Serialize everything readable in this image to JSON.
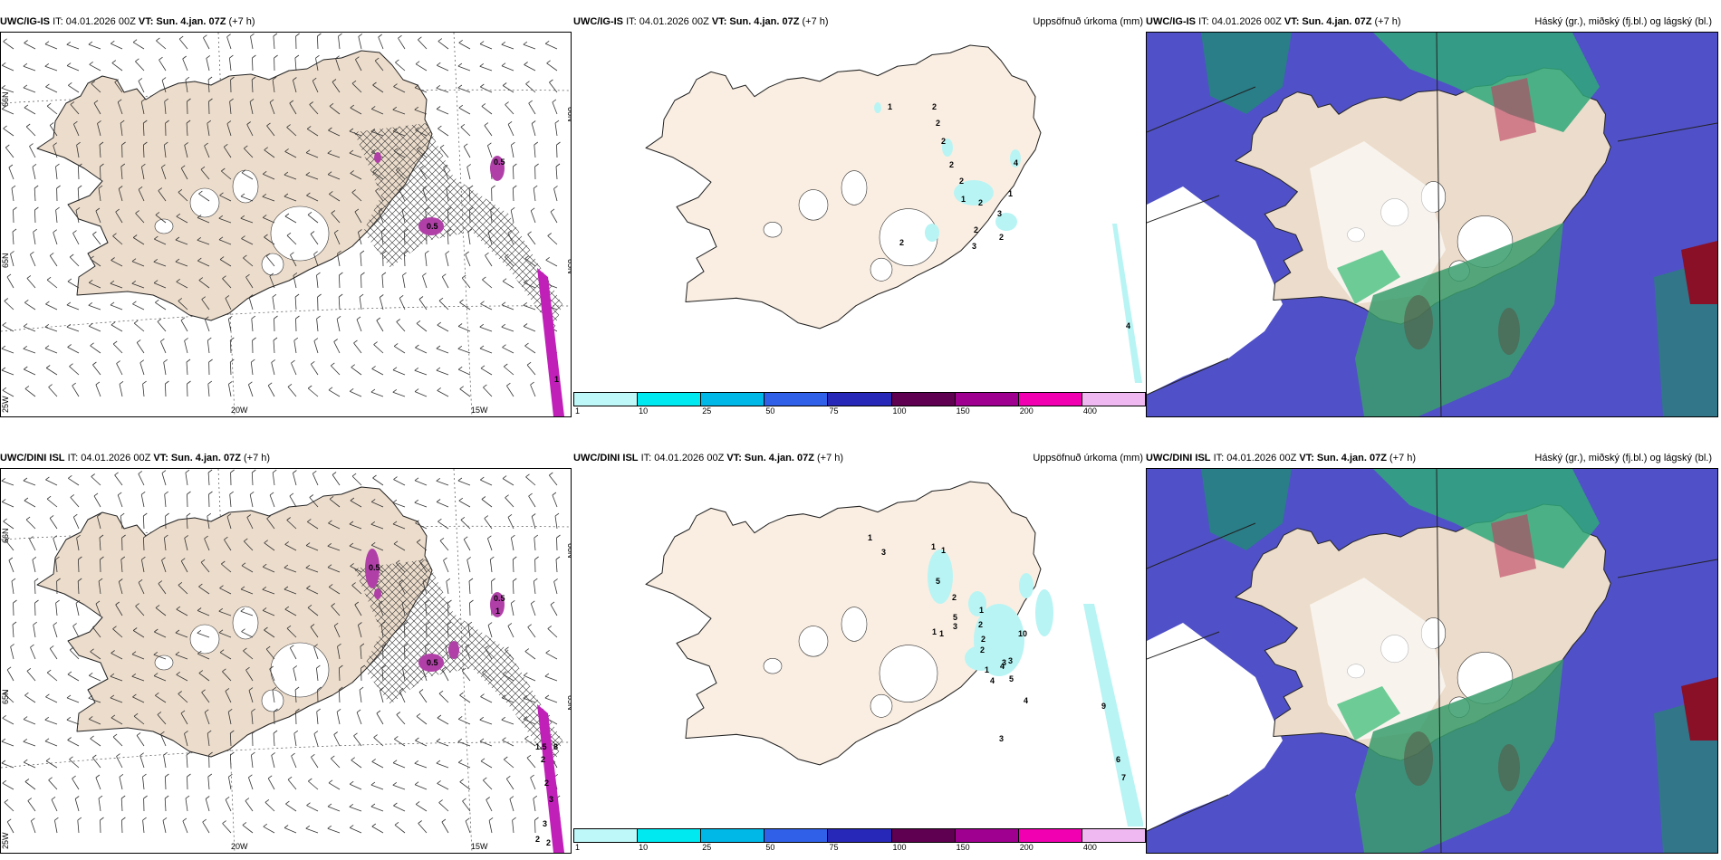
{
  "rows": [
    {
      "model": "UWC/IG-IS",
      "it": "IT: 04.01.2026 00Z",
      "vt": "VT: Sun. 4.jan. 07Z",
      "lead": "(+7 h)"
    },
    {
      "model": "UWC/DINI ISL",
      "it": "IT: 04.01.2026 00Z",
      "vt": "VT: Sun. 4.jan. 07Z",
      "lead": "(+7 h)"
    }
  ],
  "precip_title": "Uppsöfnuð úrkoma (mm)",
  "cloud_title": "Háský (gr.), miðský (fj.bl.) og lágský (bl.)",
  "axis": {
    "lon_w20": "20W",
    "lon_w15": "15W",
    "lat_66": "66N",
    "lat_64": "64N",
    "lat_65": "65N",
    "lon_25": "25W"
  },
  "colorbar": {
    "ticks": [
      "1",
      "10",
      "25",
      "50",
      "75",
      "100",
      "150",
      "200",
      "400"
    ],
    "colors": [
      "#bff8f8",
      "#00e8f0",
      "#00b8e8",
      "#3060e8",
      "#2828b8",
      "#600050",
      "#a00090",
      "#f000b0",
      "#f0b8f0"
    ]
  },
  "wind_labels_row1": [
    "0.5",
    "0.5",
    "1"
  ],
  "wind_labels_row2": [
    "0.5",
    "0.5",
    "0.5",
    "1",
    "1.5",
    "2",
    "3",
    "3",
    "8",
    "2",
    "2",
    "2"
  ],
  "precip_labels_row1": [
    "1",
    "2",
    "2",
    "2",
    "2",
    "2",
    "1",
    "2",
    "2",
    "3",
    "2",
    "2",
    "4",
    "1",
    "3",
    "4"
  ],
  "precip_labels_row2": [
    "1",
    "3",
    "1",
    "1",
    "5",
    "2",
    "1",
    "2",
    "5",
    "3",
    "1",
    "1",
    "2",
    "4",
    "10",
    "3",
    "3",
    "1",
    "4",
    "5",
    "2",
    "4",
    "3",
    "9",
    "6",
    "7"
  ]
}
